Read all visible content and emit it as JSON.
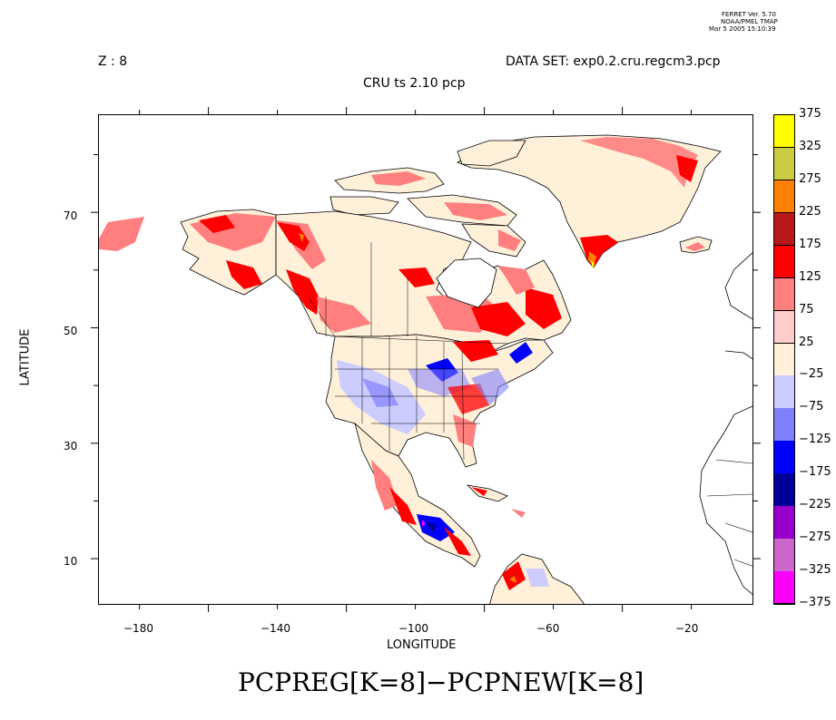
{
  "stamp": {
    "line1": "FERRET Ver. 5.70",
    "line2": "NOAA/PMEL TMAP",
    "line3": "Mar  5 2005 15:10:39"
  },
  "header": {
    "z_label": "Z : 8",
    "dataset": "DATA SET: exp0.2.cru.regcm3.pcp",
    "subtitle": "CRU ts 2.10 pcp"
  },
  "axes": {
    "xlabel": "LONGITUDE",
    "ylabel": "LATITUDE",
    "xticks": [
      "−180",
      "−140",
      "−100",
      "−60",
      "−20"
    ],
    "xtick_values": [
      -180,
      -140,
      -100,
      -60,
      -20
    ],
    "yticks": [
      "70",
      "50",
      "30",
      "10"
    ],
    "ytick_values": [
      70,
      50,
      30,
      10
    ],
    "xlim": [
      -192,
      -2
    ],
    "ylim": [
      2,
      87
    ]
  },
  "colorbar": {
    "labels": [
      "375",
      "325",
      "275",
      "225",
      "175",
      "125",
      "75",
      "25",
      "−25",
      "−75",
      "−125",
      "−175",
      "−225",
      "−275",
      "−325",
      "−375"
    ],
    "colors": [
      "#ffff00",
      "#cccc44",
      "#ff8000",
      "#b81818",
      "#ff0000",
      "#ff7f7f",
      "#ffcccc",
      "#fff0d9",
      "#ccccff",
      "#8080ff",
      "#0000ff",
      "#000099",
      "#9900cc",
      "#cc66cc",
      "#ff00ff"
    ]
  },
  "footer": {
    "expression": "PCPREG[K=8]−PCPNEW[K=8]"
  }
}
